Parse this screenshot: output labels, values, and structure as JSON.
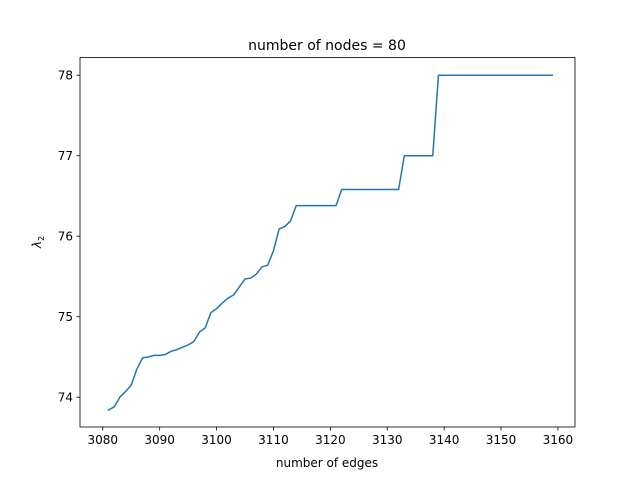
{
  "chart_data": {
    "type": "line",
    "title": "number of nodes = 80",
    "xlabel": "number of edges",
    "ylabel": "λ",
    "ylabel_subscript": "2",
    "xlim": [
      3076,
      3163
    ],
    "ylim": [
      73.63,
      78.22
    ],
    "xticks": [
      3080,
      3090,
      3100,
      3110,
      3120,
      3130,
      3140,
      3150,
      3160
    ],
    "yticks": [
      74,
      75,
      76,
      77,
      78
    ],
    "grid": false,
    "legend": "none",
    "series": [
      {
        "color": "#1f77b4",
        "x": [
          3081,
          3082,
          3083,
          3084,
          3085,
          3086,
          3087,
          3088,
          3089,
          3090,
          3091,
          3092,
          3093,
          3094,
          3095,
          3096,
          3097,
          3098,
          3099,
          3100,
          3101,
          3102,
          3103,
          3104,
          3105,
          3106,
          3107,
          3108,
          3109,
          3110,
          3111,
          3112,
          3113,
          3114,
          3115,
          3116,
          3117,
          3118,
          3119,
          3120,
          3121,
          3122,
          3123,
          3124,
          3125,
          3126,
          3127,
          3128,
          3129,
          3130,
          3131,
          3132,
          3133,
          3134,
          3135,
          3136,
          3137,
          3138,
          3139,
          3159
        ],
        "y": [
          73.84,
          73.88,
          74.0,
          74.07,
          74.15,
          74.35,
          74.49,
          74.5,
          74.52,
          74.52,
          74.53,
          74.57,
          74.59,
          74.62,
          74.65,
          74.69,
          74.81,
          74.86,
          75.05,
          75.1,
          75.17,
          75.23,
          75.27,
          75.37,
          75.47,
          75.48,
          75.53,
          75.62,
          75.64,
          75.82,
          76.09,
          76.12,
          76.19,
          76.38,
          76.38,
          76.38,
          76.38,
          76.38,
          76.38,
          76.38,
          76.38,
          76.58,
          76.58,
          76.58,
          76.58,
          76.58,
          76.58,
          76.58,
          76.58,
          76.58,
          76.58,
          76.58,
          77.0,
          77.0,
          77.0,
          77.0,
          77.0,
          77.0,
          78.0,
          78.0
        ]
      }
    ]
  }
}
